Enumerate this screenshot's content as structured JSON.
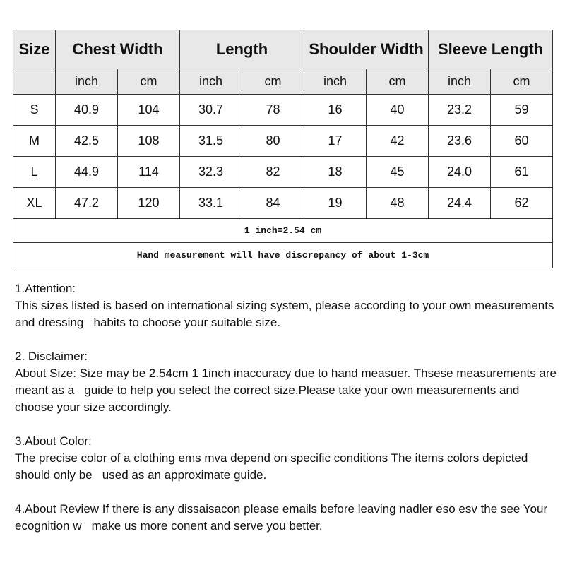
{
  "table": {
    "headers": [
      "Size",
      "Chest Width",
      "Length",
      "Shoulder Width",
      "Sleeve Length"
    ],
    "units": [
      "inch",
      "cm",
      "inch",
      "cm",
      "inch",
      "cm",
      "inch",
      "cm"
    ],
    "rows": [
      [
        "S",
        "40.9",
        "104",
        "30.7",
        "78",
        "16",
        "40",
        "23.2",
        "59"
      ],
      [
        "M",
        "42.5",
        "108",
        "31.5",
        "80",
        "17",
        "42",
        "23.6",
        "60"
      ],
      [
        "L",
        "44.9",
        "114",
        "32.3",
        "82",
        "18",
        "45",
        "24.0",
        "61"
      ],
      [
        "XL",
        "47.2",
        "120",
        "33.1",
        "84",
        "19",
        "48",
        "24.4",
        "62"
      ]
    ],
    "note1": "1 inch=2.54 cm",
    "note2": "Hand measurement will have discrepancy of about 1-3cm"
  },
  "notes": [
    {
      "title": "1.Attention:",
      "body": "This sizes listed is based on international sizing system, please according to your own measurements and dressing   habits to choose your suitable size."
    },
    {
      "title": "2. Disclaimer:",
      "body": "About Size: Size may be 2.54cm 1 1inch inaccuracy due to hand measuer. Thsese measurements are meant as a   guide to help you select the correct size.Please take your own measurements and choose your size accordingly."
    },
    {
      "title": "3.About Color:",
      "body": "The precise color of a clothing ems mva depend on specific conditions The items colors depicted should only be   used as an approximate guide."
    },
    {
      "title": "",
      "body": "4.About Review If there is any dissaisacon please emails before leaving nadler eso esv the see Your ecognition w   make us more conent and serve you better."
    }
  ]
}
